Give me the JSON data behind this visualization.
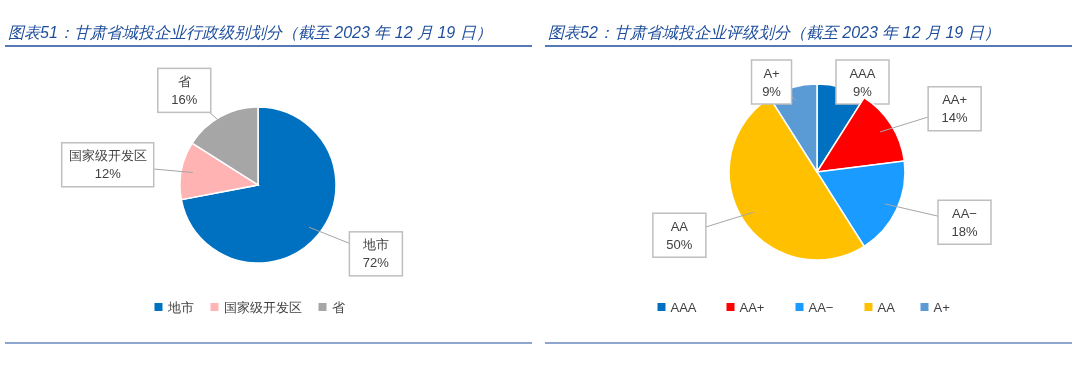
{
  "chart_data": [
    {
      "type": "pie",
      "title": "图表51：甘肃省城投企业行政级别划分（截至 2023 年 12 月 19 日）",
      "categories": [
        "地市",
        "国家级开发区",
        "省"
      ],
      "values": [
        72,
        12,
        16
      ],
      "colors": [
        "#0070c0",
        "#ffb3b3",
        "#a6a6a6"
      ],
      "value_labels": [
        "72%",
        "12%",
        "16%"
      ],
      "legend": "bottom"
    },
    {
      "type": "pie",
      "title": "图表52：甘肃省城投企业评级划分（截至 2023 年 12 月 19 日）",
      "categories": [
        "AAA",
        "AA+",
        "AA−",
        "AA",
        "A+"
      ],
      "values": [
        9,
        14,
        18,
        50,
        9
      ],
      "colors": [
        "#0070c0",
        "#ff0000",
        "#1a9bff",
        "#ffc000",
        "#5b9bd5"
      ],
      "value_labels": [
        "9%",
        "14%",
        "18%",
        "50%",
        "9%"
      ],
      "legend": "bottom"
    }
  ]
}
